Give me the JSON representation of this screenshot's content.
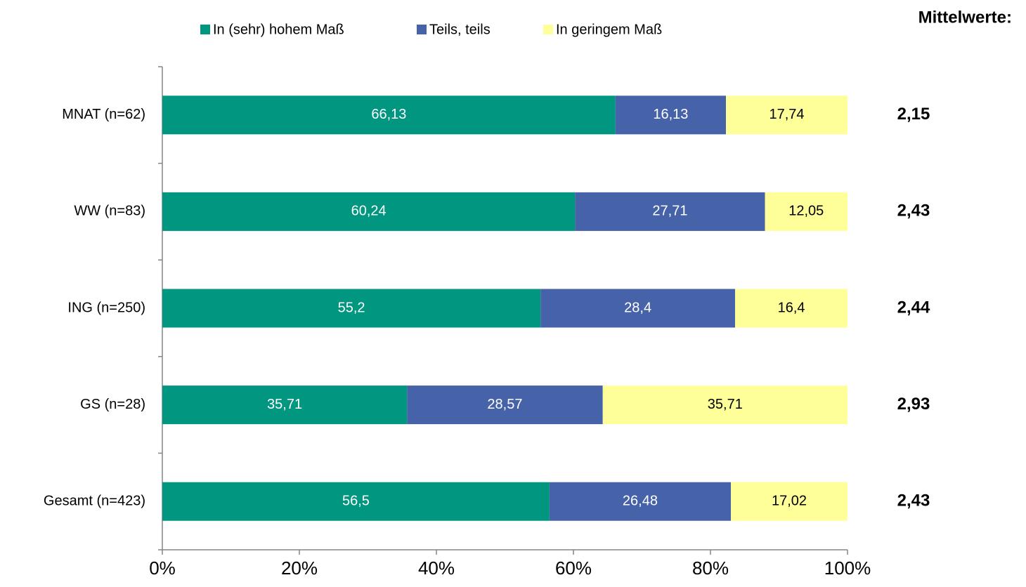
{
  "chart_data": {
    "type": "stacked_barh",
    "categories": [
      "MNAT (n=62)",
      "WW (n=83)",
      "ING (n=250)",
      "GS (n=28)",
      "Gesamt (n=423)"
    ],
    "series": [
      {
        "name": "In (sehr) hohem Maß",
        "color": "#009680",
        "values": [
          66.13,
          60.24,
          55.2,
          35.71,
          56.5
        ],
        "value_labels": [
          "66,13",
          "60,24",
          "55,2",
          "35,71",
          "56,5"
        ]
      },
      {
        "name": "Teils, teils",
        "color": "#4662a8",
        "values": [
          16.13,
          27.71,
          28.4,
          28.57,
          26.48
        ],
        "value_labels": [
          "16,13",
          "27,71",
          "28,4",
          "28,57",
          "26,48"
        ]
      },
      {
        "name": "In geringem Maß",
        "color": "#ffff99",
        "values": [
          17.74,
          12.05,
          16.4,
          35.71,
          17.02
        ],
        "value_labels": [
          "17,74",
          "12,05",
          "16,4",
          "35,71",
          "17,02"
        ]
      }
    ],
    "xlim": [
      0,
      100
    ],
    "xticks": [
      {
        "value": 0,
        "label": "0%"
      },
      {
        "value": 20,
        "label": "20%"
      },
      {
        "value": 40,
        "label": "40%"
      },
      {
        "value": 60,
        "label": "60%"
      },
      {
        "value": 80,
        "label": "80%"
      },
      {
        "value": 100,
        "label": "100%"
      }
    ],
    "legend": "top",
    "means_title": "Mittelwerte:",
    "means": [
      "2,15",
      "2,43",
      "2,44",
      "2,93",
      "2,43"
    ]
  }
}
